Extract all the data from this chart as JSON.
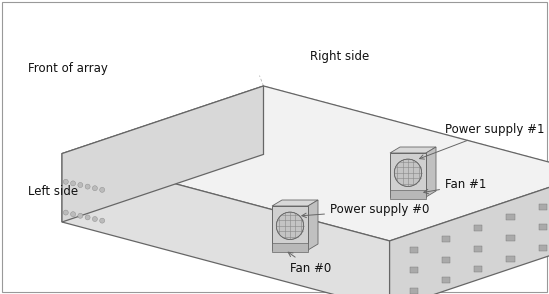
{
  "bg_color": "#ffffff",
  "line_color": "#666666",
  "line_color_light": "#999999",
  "line_color_dashed": "#aaaaaa",
  "fill_top": "#f2f2f2",
  "fill_front": "#e0e0e0",
  "fill_side_left": "#d8d8d8",
  "fill_back_panel": "#d0d0d0",
  "fill_psu": "#c8c8c8",
  "fill_fan": "#b8b8b8",
  "fill_grill": "#c0c0c0",
  "labels": {
    "front_of_array": "Front of array",
    "right_side": "Right side",
    "left_side": "Left side",
    "power_supply_1": "Power supply #1",
    "fan_1": "Fan #1",
    "power_supply_0": "Power supply #0",
    "fan_0": "Fan #0"
  },
  "font_size": 8.5,
  "border_color": "#999999"
}
